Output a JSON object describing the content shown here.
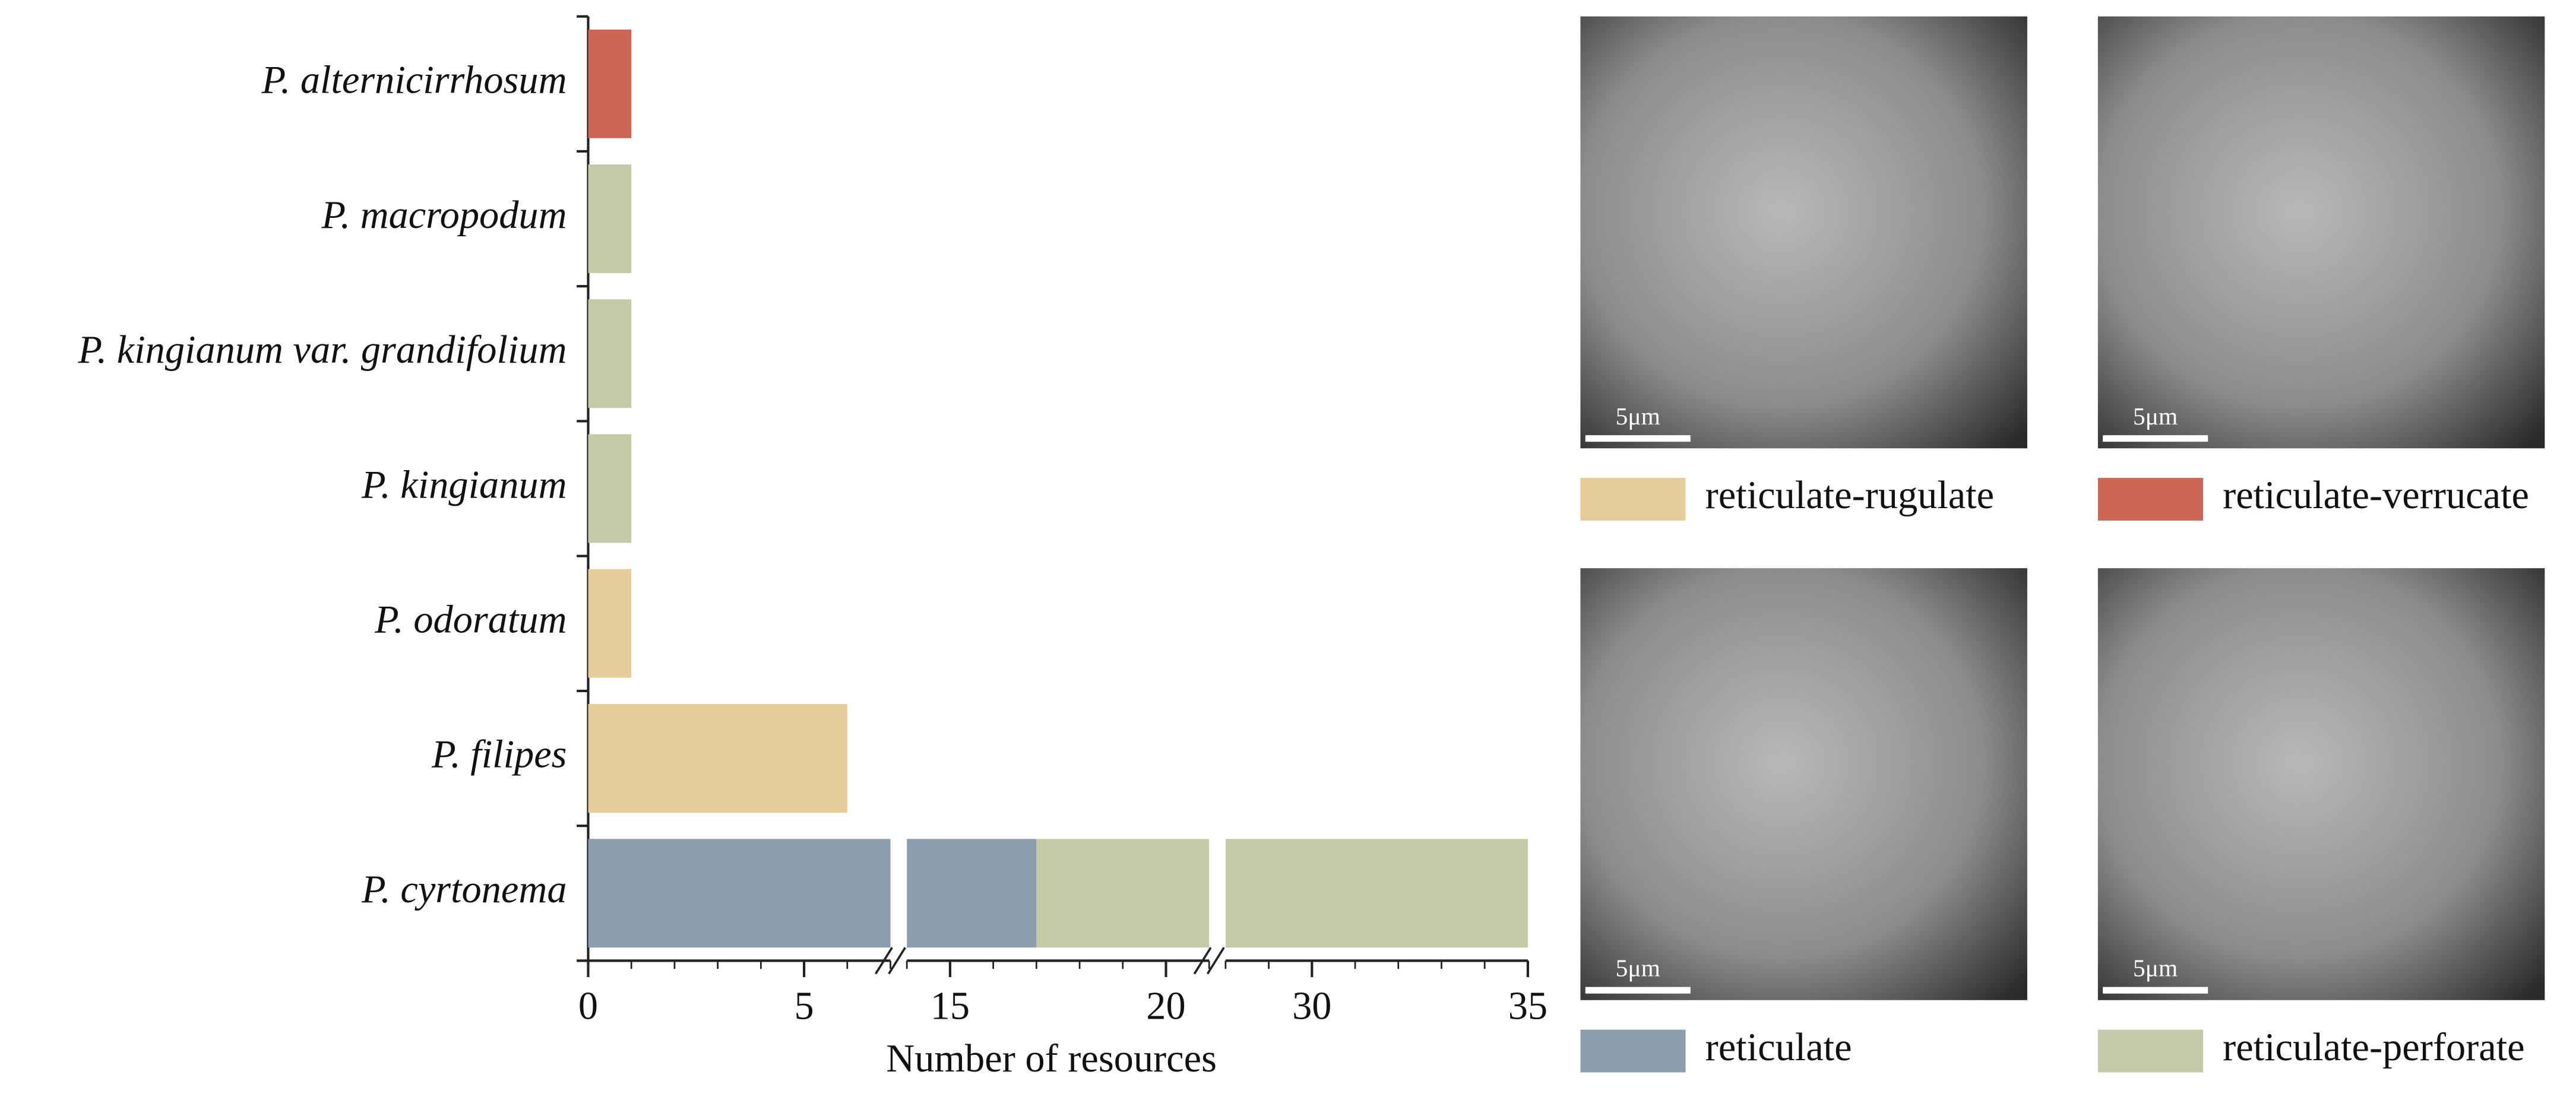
{
  "chart_data": {
    "type": "stacked-barh",
    "x_label": "Number of resources",
    "categories": [
      "P. alternicirrhosum",
      "P. macropodum",
      "P. kingianum var. grandifolium",
      "P. kingianum",
      "P. odoratum",
      "P. filipes",
      "P. cyrtonema"
    ],
    "series": [
      {
        "name": "reticulate-rugulate",
        "color": "#e6cc98",
        "values": [
          null,
          null,
          null,
          null,
          1,
          6,
          null
        ]
      },
      {
        "name": "reticulate-verrucate",
        "color": "#cd6654",
        "values": [
          1,
          null,
          null,
          null,
          null,
          null,
          null
        ]
      },
      {
        "name": "reticulate",
        "color": "#8a9eab",
        "values": [
          null,
          null,
          null,
          null,
          null,
          null,
          17
        ]
      },
      {
        "name": "reticulate-perforate",
        "color": "#c5c9a5",
        "values": [
          null,
          1,
          1,
          1,
          null,
          null,
          18
        ]
      }
    ],
    "xlim": [
      [
        0,
        7
      ],
      [
        14,
        21
      ],
      [
        28,
        35
      ]
    ],
    "xticks": [
      0,
      5,
      15,
      20,
      30,
      35
    ]
  },
  "panels": [
    {
      "scale_bar": "5μm"
    },
    {
      "scale_bar": "5μm"
    },
    {
      "scale_bar": "5μm"
    },
    {
      "scale_bar": "5μm"
    }
  ]
}
